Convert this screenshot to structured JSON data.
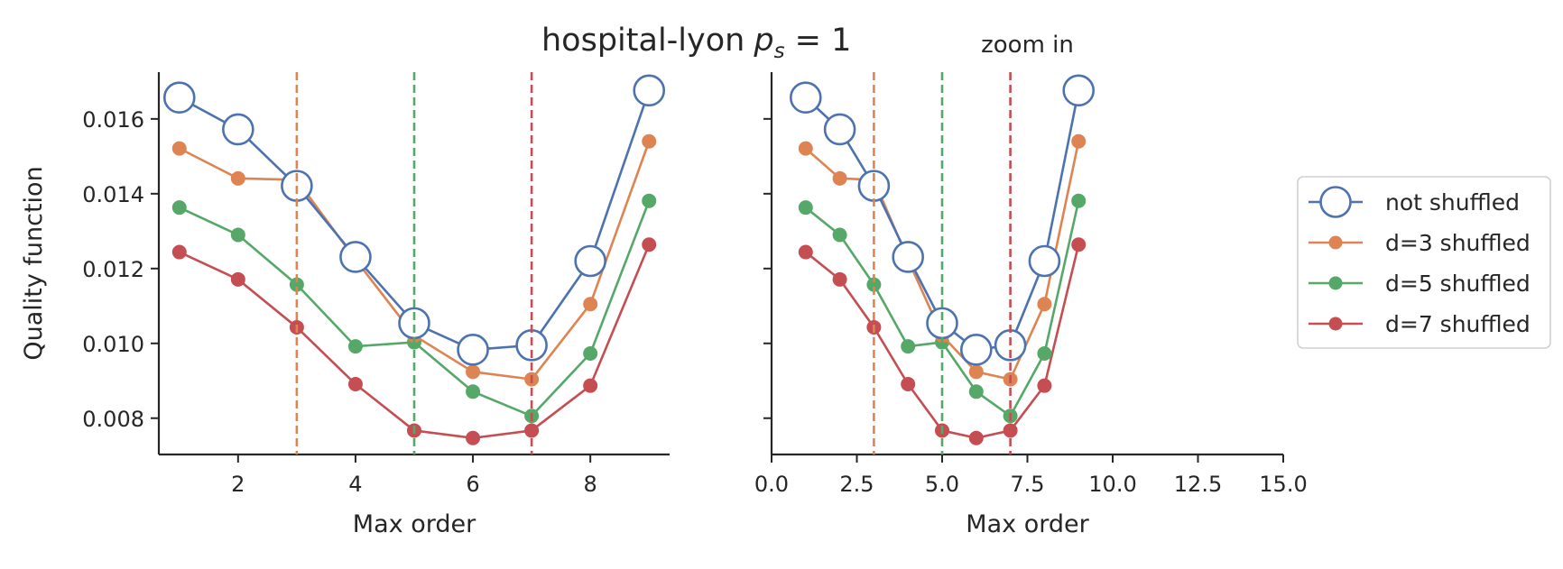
{
  "title_main": "hospital-lyon",
  "title_math_var": "p",
  "title_math_sub": "s",
  "title_math_rest": " = 1",
  "colors": {
    "not shuffled": "#4c72b0",
    "d=3 shuffled": "#dd8452",
    "d=5 shuffled": "#55a868",
    "d=7 shuffled": "#c44e52",
    "axis": "#262626"
  },
  "chart_data": [
    {
      "type": "line",
      "title": "",
      "xlabel": "Max order",
      "ylabel": "Quality function",
      "xlim": [
        0.65,
        9.35
      ],
      "ylim": [
        0.00703,
        0.01725
      ],
      "xticks": [
        2,
        4,
        6,
        8
      ],
      "xtick_labels": [
        "2",
        "4",
        "6",
        "8"
      ],
      "yticks": [
        0.008,
        0.01,
        0.012,
        0.014,
        0.016
      ],
      "ytick_labels": [
        "0.008",
        "0.010",
        "0.012",
        "0.014",
        "0.016"
      ],
      "grid": false,
      "x": [
        1,
        2,
        3,
        4,
        5,
        6,
        7,
        8,
        9
      ],
      "series": [
        {
          "name": "not shuffled",
          "marker": "open-circle",
          "values": [
            0.01657,
            0.01572,
            0.01421,
            0.01231,
            0.01054,
            0.00983,
            0.00995,
            0.0122,
            0.01676
          ]
        },
        {
          "name": "d=3 shuffled",
          "marker": "dot",
          "values": [
            0.01521,
            0.01441,
            0.01437,
            0.01224,
            0.01021,
            0.00924,
            0.00904,
            0.01105,
            0.0154
          ]
        },
        {
          "name": "d=5 shuffled",
          "marker": "dot",
          "values": [
            0.01363,
            0.0129,
            0.01157,
            0.00992,
            0.01003,
            0.00871,
            0.00806,
            0.00973,
            0.01381
          ]
        },
        {
          "name": "d=7 shuffled",
          "marker": "dot",
          "values": [
            0.01244,
            0.01171,
            0.01043,
            0.00891,
            0.00767,
            0.00747,
            0.00767,
            0.00887,
            0.01264
          ]
        }
      ],
      "vlines": [
        {
          "x": 3,
          "series": "d=3 shuffled"
        },
        {
          "x": 5,
          "series": "d=5 shuffled"
        },
        {
          "x": 7,
          "series": "d=7 shuffled"
        }
      ]
    },
    {
      "type": "line",
      "title": "zoom in",
      "xlabel": "Max order",
      "ylabel": "",
      "xlim": [
        0,
        15
      ],
      "ylim": [
        0.00703,
        0.01725
      ],
      "xticks": [
        0,
        2.5,
        5,
        7.5,
        10,
        12.5,
        15
      ],
      "xtick_labels": [
        "0.0",
        "2.5",
        "5.0",
        "7.5",
        "10.0",
        "12.5",
        "15.0"
      ],
      "yticks": [
        0.008,
        0.01,
        0.012,
        0.014,
        0.016
      ],
      "ytick_labels": [],
      "grid": false,
      "x": [
        1,
        2,
        3,
        4,
        5,
        6,
        7,
        8,
        9
      ],
      "series": [
        {
          "name": "not shuffled",
          "marker": "open-circle",
          "values": [
            0.01657,
            0.01572,
            0.01421,
            0.01231,
            0.01054,
            0.00983,
            0.00995,
            0.0122,
            0.01676
          ]
        },
        {
          "name": "d=3 shuffled",
          "marker": "dot",
          "values": [
            0.01521,
            0.01441,
            0.01437,
            0.01224,
            0.01021,
            0.00924,
            0.00904,
            0.01105,
            0.0154
          ]
        },
        {
          "name": "d=5 shuffled",
          "marker": "dot",
          "values": [
            0.01363,
            0.0129,
            0.01157,
            0.00992,
            0.01003,
            0.00871,
            0.00806,
            0.00973,
            0.01381
          ]
        },
        {
          "name": "d=7 shuffled",
          "marker": "dot",
          "values": [
            0.01244,
            0.01171,
            0.01043,
            0.00891,
            0.00767,
            0.00747,
            0.00767,
            0.00887,
            0.01264
          ]
        }
      ],
      "vlines": [
        {
          "x": 3,
          "series": "d=3 shuffled"
        },
        {
          "x": 5,
          "series": "d=5 shuffled"
        },
        {
          "x": 7,
          "series": "d=7 shuffled"
        }
      ]
    }
  ],
  "legend": {
    "placement": "right",
    "items": [
      "not shuffled",
      "d=3 shuffled",
      "d=5 shuffled",
      "d=7 shuffled"
    ]
  }
}
